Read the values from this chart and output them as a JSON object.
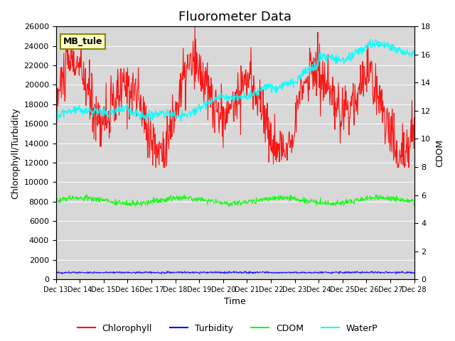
{
  "title": "Fluorometer Data",
  "xlabel": "Time",
  "ylabel_left": "Chlorophyll/Turbidity",
  "ylabel_right": "CDOM",
  "annotation": "MB_tule",
  "ylim_left": [
    0,
    26000
  ],
  "ylim_right": [
    0,
    18
  ],
  "x_ticks": [
    "Dec 13",
    "Dec 14",
    "Dec 15",
    "Dec 16",
    "Dec 17",
    "Dec 18",
    "Dec 19",
    "Dec 20",
    "Dec 21",
    "Dec 22",
    "Dec 23",
    "Dec 24",
    "Dec 25",
    "Dec 26",
    "Dec 27",
    "Dec 28"
  ],
  "legend_labels": [
    "Chlorophyll",
    "Turbidity",
    "CDOM",
    "WaterP"
  ],
  "legend_colors": [
    "red",
    "blue",
    "lime",
    "cyan"
  ],
  "bg_color": "#e8e8e8",
  "title_fontsize": 13
}
